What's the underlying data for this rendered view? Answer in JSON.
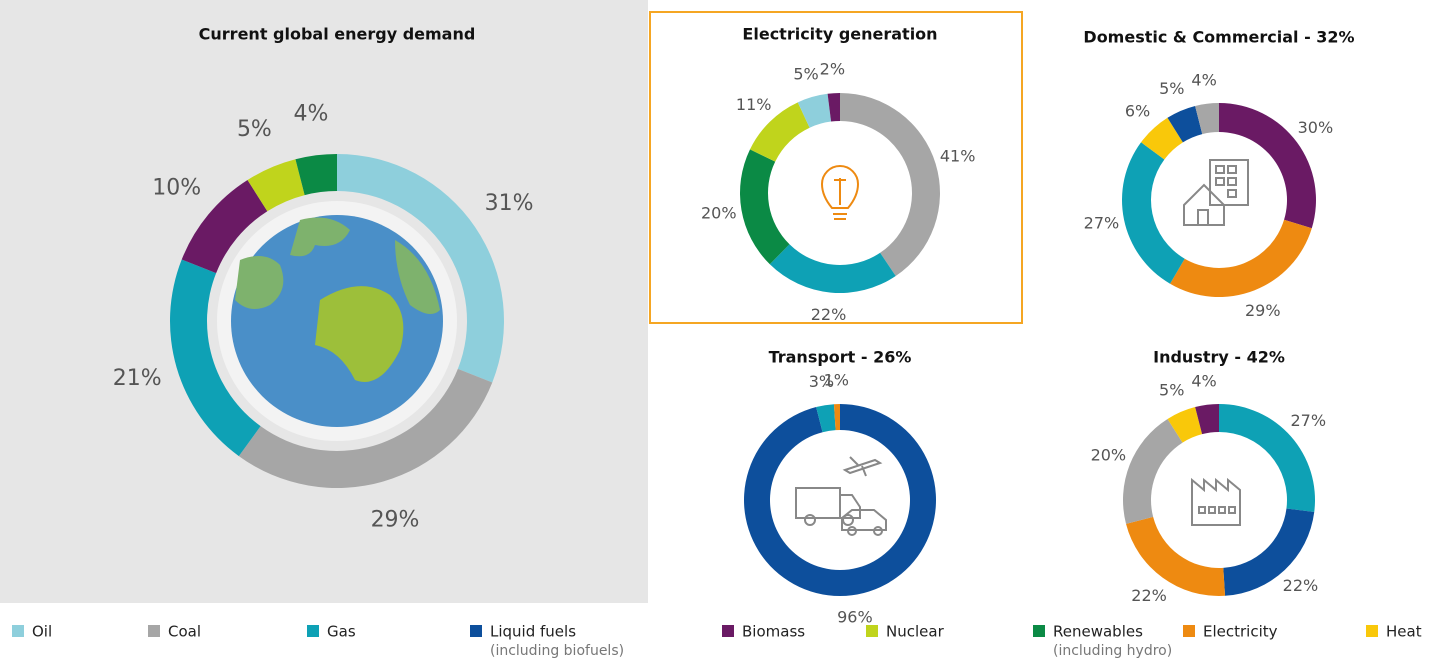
{
  "chart_data": [
    {
      "type": "donut",
      "title": "Current global energy demand",
      "categories": [
        "Oil",
        "Coal",
        "Gas",
        "Biomass",
        "Nuclear",
        "Renewables"
      ],
      "values": [
        31,
        29,
        21,
        10,
        5,
        4
      ],
      "value_labels": [
        "31%",
        "29%",
        "21%",
        "10%",
        "5%",
        "4%"
      ],
      "colors": [
        "#8ecfdc",
        "#a6a6a6",
        "#0ea1b5",
        "#6a1a64",
        "#c0d41c",
        "#0b8a45"
      ]
    },
    {
      "type": "donut",
      "title": "Electricity generation",
      "categories": [
        "Coal",
        "Gas",
        "Renewables",
        "Nuclear",
        "Oil",
        "Biomass"
      ],
      "values": [
        41,
        22,
        20,
        11,
        5,
        2
      ],
      "value_labels": [
        "41%",
        "22%",
        "20%",
        "11%",
        "5%",
        "2%"
      ],
      "colors": [
        "#a6a6a6",
        "#0ea1b5",
        "#0b8a45",
        "#c0d41c",
        "#8ecfdc",
        "#6a1a64"
      ]
    },
    {
      "type": "donut",
      "title": "Domestic & Commercial - 32%",
      "categories": [
        "Biomass",
        "Electricity",
        "Gas",
        "Heat",
        "Liquid fuels",
        "Coal"
      ],
      "values": [
        30,
        29,
        27,
        6,
        5,
        4
      ],
      "value_labels": [
        "30%",
        "29%",
        "27%",
        "6%",
        "5%",
        "4%"
      ],
      "colors": [
        "#6a1a64",
        "#ee8a11",
        "#0ea1b5",
        "#f9c80a",
        "#0d4f9c",
        "#a6a6a6"
      ]
    },
    {
      "type": "donut",
      "title": "Transport - 26%",
      "categories": [
        "Liquid fuels",
        "Gas",
        "Electricity"
      ],
      "values": [
        96,
        3,
        1
      ],
      "value_labels": [
        "96%",
        "3%",
        "1%"
      ],
      "colors": [
        "#0d4f9c",
        "#0ea1b5",
        "#ee8a11"
      ]
    },
    {
      "type": "donut",
      "title": "Industry - 42%",
      "categories": [
        "Gas",
        "Liquid fuels",
        "Electricity",
        "Coal",
        "Heat",
        "Biomass"
      ],
      "values": [
        27,
        22,
        22,
        20,
        5,
        4
      ],
      "value_labels": [
        "27%",
        "22%",
        "22%",
        "20%",
        "5%",
        "4%"
      ],
      "colors": [
        "#0ea1b5",
        "#0d4f9c",
        "#ee8a11",
        "#a6a6a6",
        "#f9c80a",
        "#6a1a64"
      ]
    }
  ],
  "legend": [
    {
      "name": "Oil",
      "color": "#8ecfdc"
    },
    {
      "name": "Coal",
      "color": "#a6a6a6"
    },
    {
      "name": "Gas",
      "color": "#0ea1b5"
    },
    {
      "name": "Liquid fuels",
      "note": "(including biofuels)",
      "color": "#0d4f9c"
    },
    {
      "name": "Biomass",
      "color": "#6a1a64"
    },
    {
      "name": "Nuclear",
      "color": "#c0d41c"
    },
    {
      "name": "Renewables",
      "note": "(including hydro)",
      "color": "#0b8a45"
    },
    {
      "name": "Electricity",
      "color": "#ee8a11"
    },
    {
      "name": "Heat",
      "color": "#f9c80a"
    }
  ]
}
